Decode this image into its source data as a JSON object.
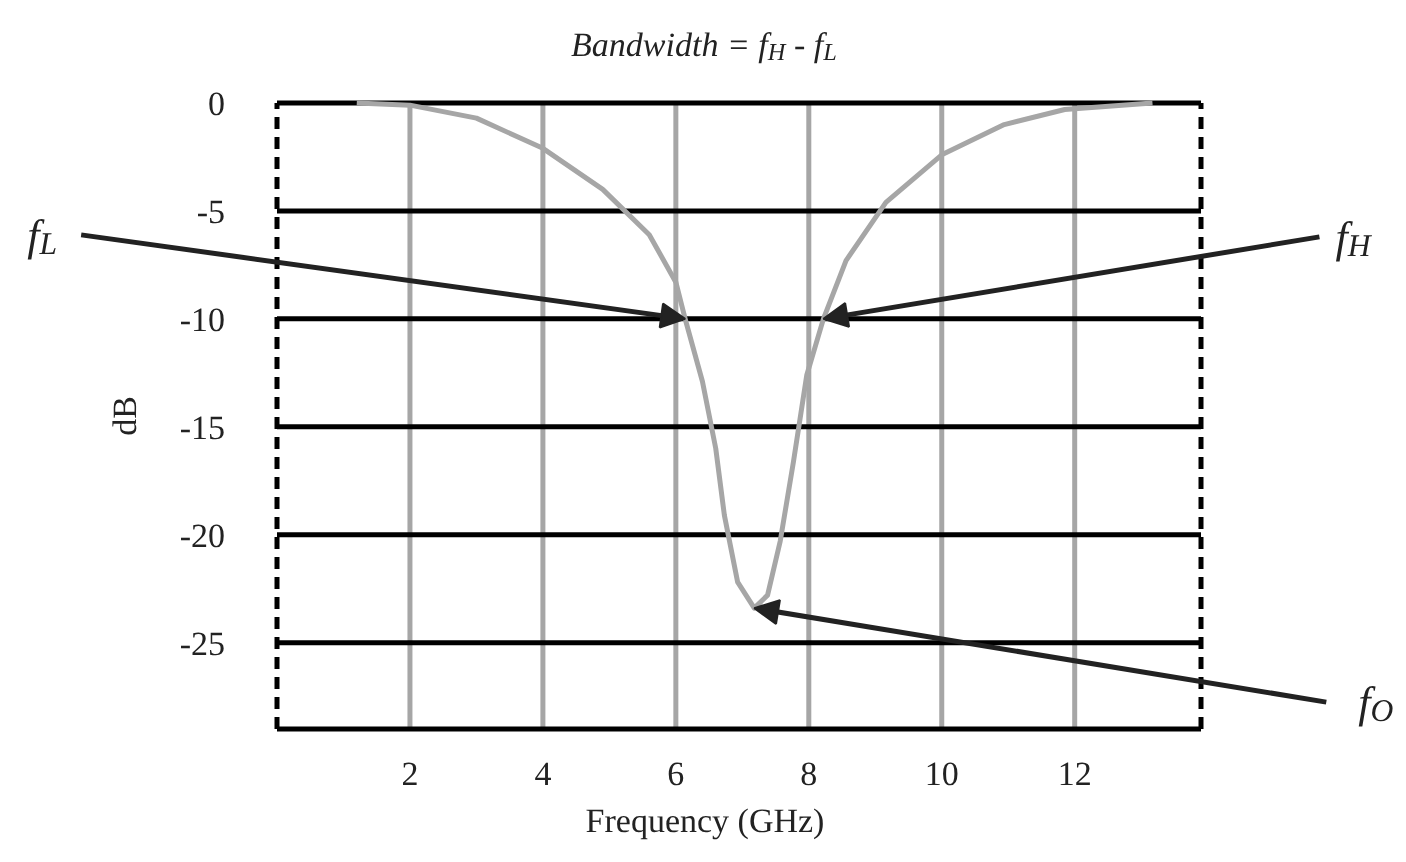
{
  "chart_data": {
    "type": "line",
    "title": "Bandwidth = f$_{H}$ - f$_{L}$",
    "xlabel": "Frequency (GHz)",
    "ylabel": "dB",
    "x": [
      1.2,
      2.0,
      3.0,
      4.0,
      4.9,
      5.6,
      6.0,
      6.14,
      6.4,
      6.6,
      6.73,
      6.93,
      7.18,
      7.38,
      7.57,
      7.77,
      7.97,
      8.22,
      8.56,
      9.16,
      10.0,
      10.94,
      11.85,
      13.17
    ],
    "series": [
      {
        "color": "#a6a6a6",
        "values": [
          0,
          -0.1,
          -0.7,
          -2.1,
          -4.0,
          -6.1,
          -8.3,
          -10,
          -12.9,
          -16.0,
          -19.1,
          -22.2,
          -23.4,
          -22.8,
          -20.3,
          -16.6,
          -12.6,
          -10,
          -7.3,
          -4.6,
          -2.4,
          -1.0,
          -0.3,
          0
        ]
      }
    ],
    "xlim": [
      0,
      13.9
    ],
    "ylim": [
      -29,
      0
    ],
    "xticks": [
      2,
      4,
      6,
      8,
      10,
      12
    ],
    "yticks": [
      0,
      -5,
      -10,
      -15,
      -20,
      -25
    ],
    "grid": true,
    "marker": "none",
    "line_style": "solid",
    "annotations": [
      {
        "text": "f$_{L}$",
        "x": 6.14,
        "y": -10
      },
      {
        "text": "f$_{H}$",
        "x": 8.22,
        "y": -10
      },
      {
        "text": "f$_{O}$",
        "x": 7.18,
        "y": -23.4
      }
    ]
  }
}
